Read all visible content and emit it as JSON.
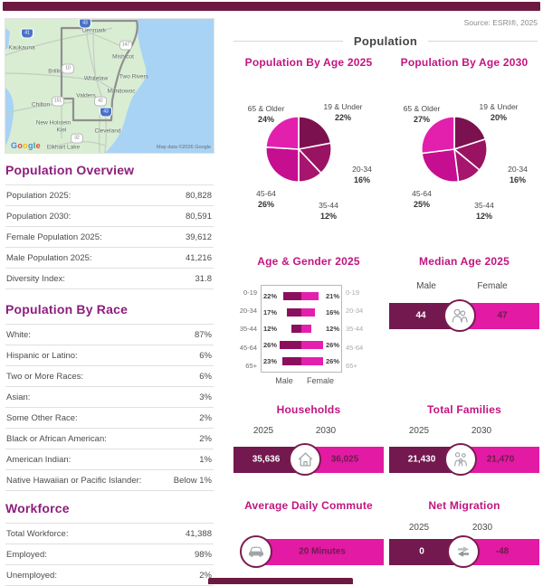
{
  "header": {
    "source": "Source: ESRI®, 2025",
    "title": "Population"
  },
  "map": {
    "logo": "Google",
    "google_colors": [
      "#4285F4",
      "#EA4335",
      "#FBBC05",
      "#4285F4",
      "#34A853",
      "#EA4335"
    ],
    "attribution": "Map data ©2026 Google",
    "towns": [
      "Kaukauna",
      "Denmark",
      "Mishicot",
      "Two Rivers",
      "Whitelaw",
      "Brillion",
      "Manitowoc",
      "Valders",
      "Chilton",
      "New Holstein",
      "Kiel",
      "Cleveland",
      "Elkhart Lake"
    ],
    "shields": [
      "41",
      "43",
      "147",
      "10",
      "151",
      "42",
      "43",
      "32"
    ]
  },
  "overview": {
    "title": "Population Overview",
    "rows": [
      {
        "label": "Population 2025:",
        "value": "80,828"
      },
      {
        "label": "Population 2030:",
        "value": "80,591"
      },
      {
        "label": "Female Population 2025:",
        "value": "39,612"
      },
      {
        "label": "Male Population 2025:",
        "value": "41,216"
      },
      {
        "label": "Diversity Index:",
        "value": "31.8"
      }
    ]
  },
  "race": {
    "title": "Population By Race",
    "rows": [
      {
        "label": "White:",
        "value": "87%"
      },
      {
        "label": "Hispanic or Latino:",
        "value": "6%"
      },
      {
        "label": "Two or More Races:",
        "value": "6%"
      },
      {
        "label": "Asian:",
        "value": "3%"
      },
      {
        "label": "Some Other Race:",
        "value": "2%"
      },
      {
        "label": "Black or African American:",
        "value": "2%"
      },
      {
        "label": "American Indian:",
        "value": "1%"
      },
      {
        "label": "Native Hawaiian or Pacific Islander:",
        "value": "Below 1%"
      }
    ]
  },
  "workforce": {
    "title": "Workforce",
    "rows": [
      {
        "label": "Total Workforce:",
        "value": "41,388"
      },
      {
        "label": "Employed:",
        "value": "98%"
      },
      {
        "label": "Unemployed:",
        "value": "2%"
      }
    ]
  },
  "chart_data": [
    {
      "type": "pie",
      "title": "Population By Age 2025",
      "categories": [
        "19 & Under",
        "20-34",
        "35-44",
        "45-64",
        "65 & Older"
      ],
      "values": [
        22,
        16,
        12,
        26,
        24
      ],
      "value_labels": [
        "22%",
        "16%",
        "12%",
        "26%",
        "24%"
      ],
      "colors": [
        "#7c1150",
        "#9a1363",
        "#a8156f",
        "#c50e90",
        "#e320ae"
      ],
      "start_angle": 0,
      "direction": "clockwise"
    },
    {
      "type": "pie",
      "title": "Population By Age 2030",
      "categories": [
        "19 & Under",
        "20-34",
        "35-44",
        "45-64",
        "65 & Older"
      ],
      "values": [
        20,
        16,
        12,
        25,
        27
      ],
      "value_labels": [
        "20%",
        "16%",
        "12%",
        "25%",
        "27%"
      ],
      "colors": [
        "#7c1150",
        "#9a1363",
        "#a8156f",
        "#c50e90",
        "#e320ae"
      ],
      "start_angle": 0,
      "direction": "clockwise"
    },
    {
      "type": "bar",
      "title": "Age & Gender 2025",
      "layout": "population-pyramid",
      "categories": [
        "0-19",
        "20-34",
        "35-44",
        "45-64",
        "65+"
      ],
      "series": [
        {
          "name": "Male",
          "values": [
            22,
            17,
            12,
            26,
            23
          ],
          "labels": [
            "22%",
            "17%",
            "12%",
            "26%",
            "23%"
          ],
          "color": "#8c0f5e"
        },
        {
          "name": "Female",
          "values": [
            21,
            16,
            12,
            26,
            26
          ],
          "labels": [
            "21%",
            "16%",
            "12%",
            "26%",
            "26%"
          ],
          "color": "#e320ae"
        }
      ],
      "xlim": [
        0,
        30
      ],
      "unit": "%"
    }
  ],
  "median_age": {
    "title": "Median Age 2025",
    "col1": "Male",
    "col2": "Female",
    "val1": "44",
    "val2": "47"
  },
  "households": {
    "title": "Households",
    "col1": "2025",
    "col2": "2030",
    "val1": "35,636",
    "val2": "36,025"
  },
  "families": {
    "title": "Total Families",
    "col1": "2025",
    "col2": "2030",
    "val1": "21,430",
    "val2": "21,470"
  },
  "commute": {
    "title": "Average Daily Commute",
    "value": "20 Minutes"
  },
  "migration": {
    "title": "Net Migration",
    "col1": "2025",
    "col2": "2030",
    "val1": "0",
    "val2": "-48"
  },
  "colors": {
    "topbar": "#6d1a41",
    "dark_bar": "#731950",
    "magenta": "#e21aa4",
    "heading_left": "#8e1d7d",
    "heading_right": "#c2157f"
  }
}
